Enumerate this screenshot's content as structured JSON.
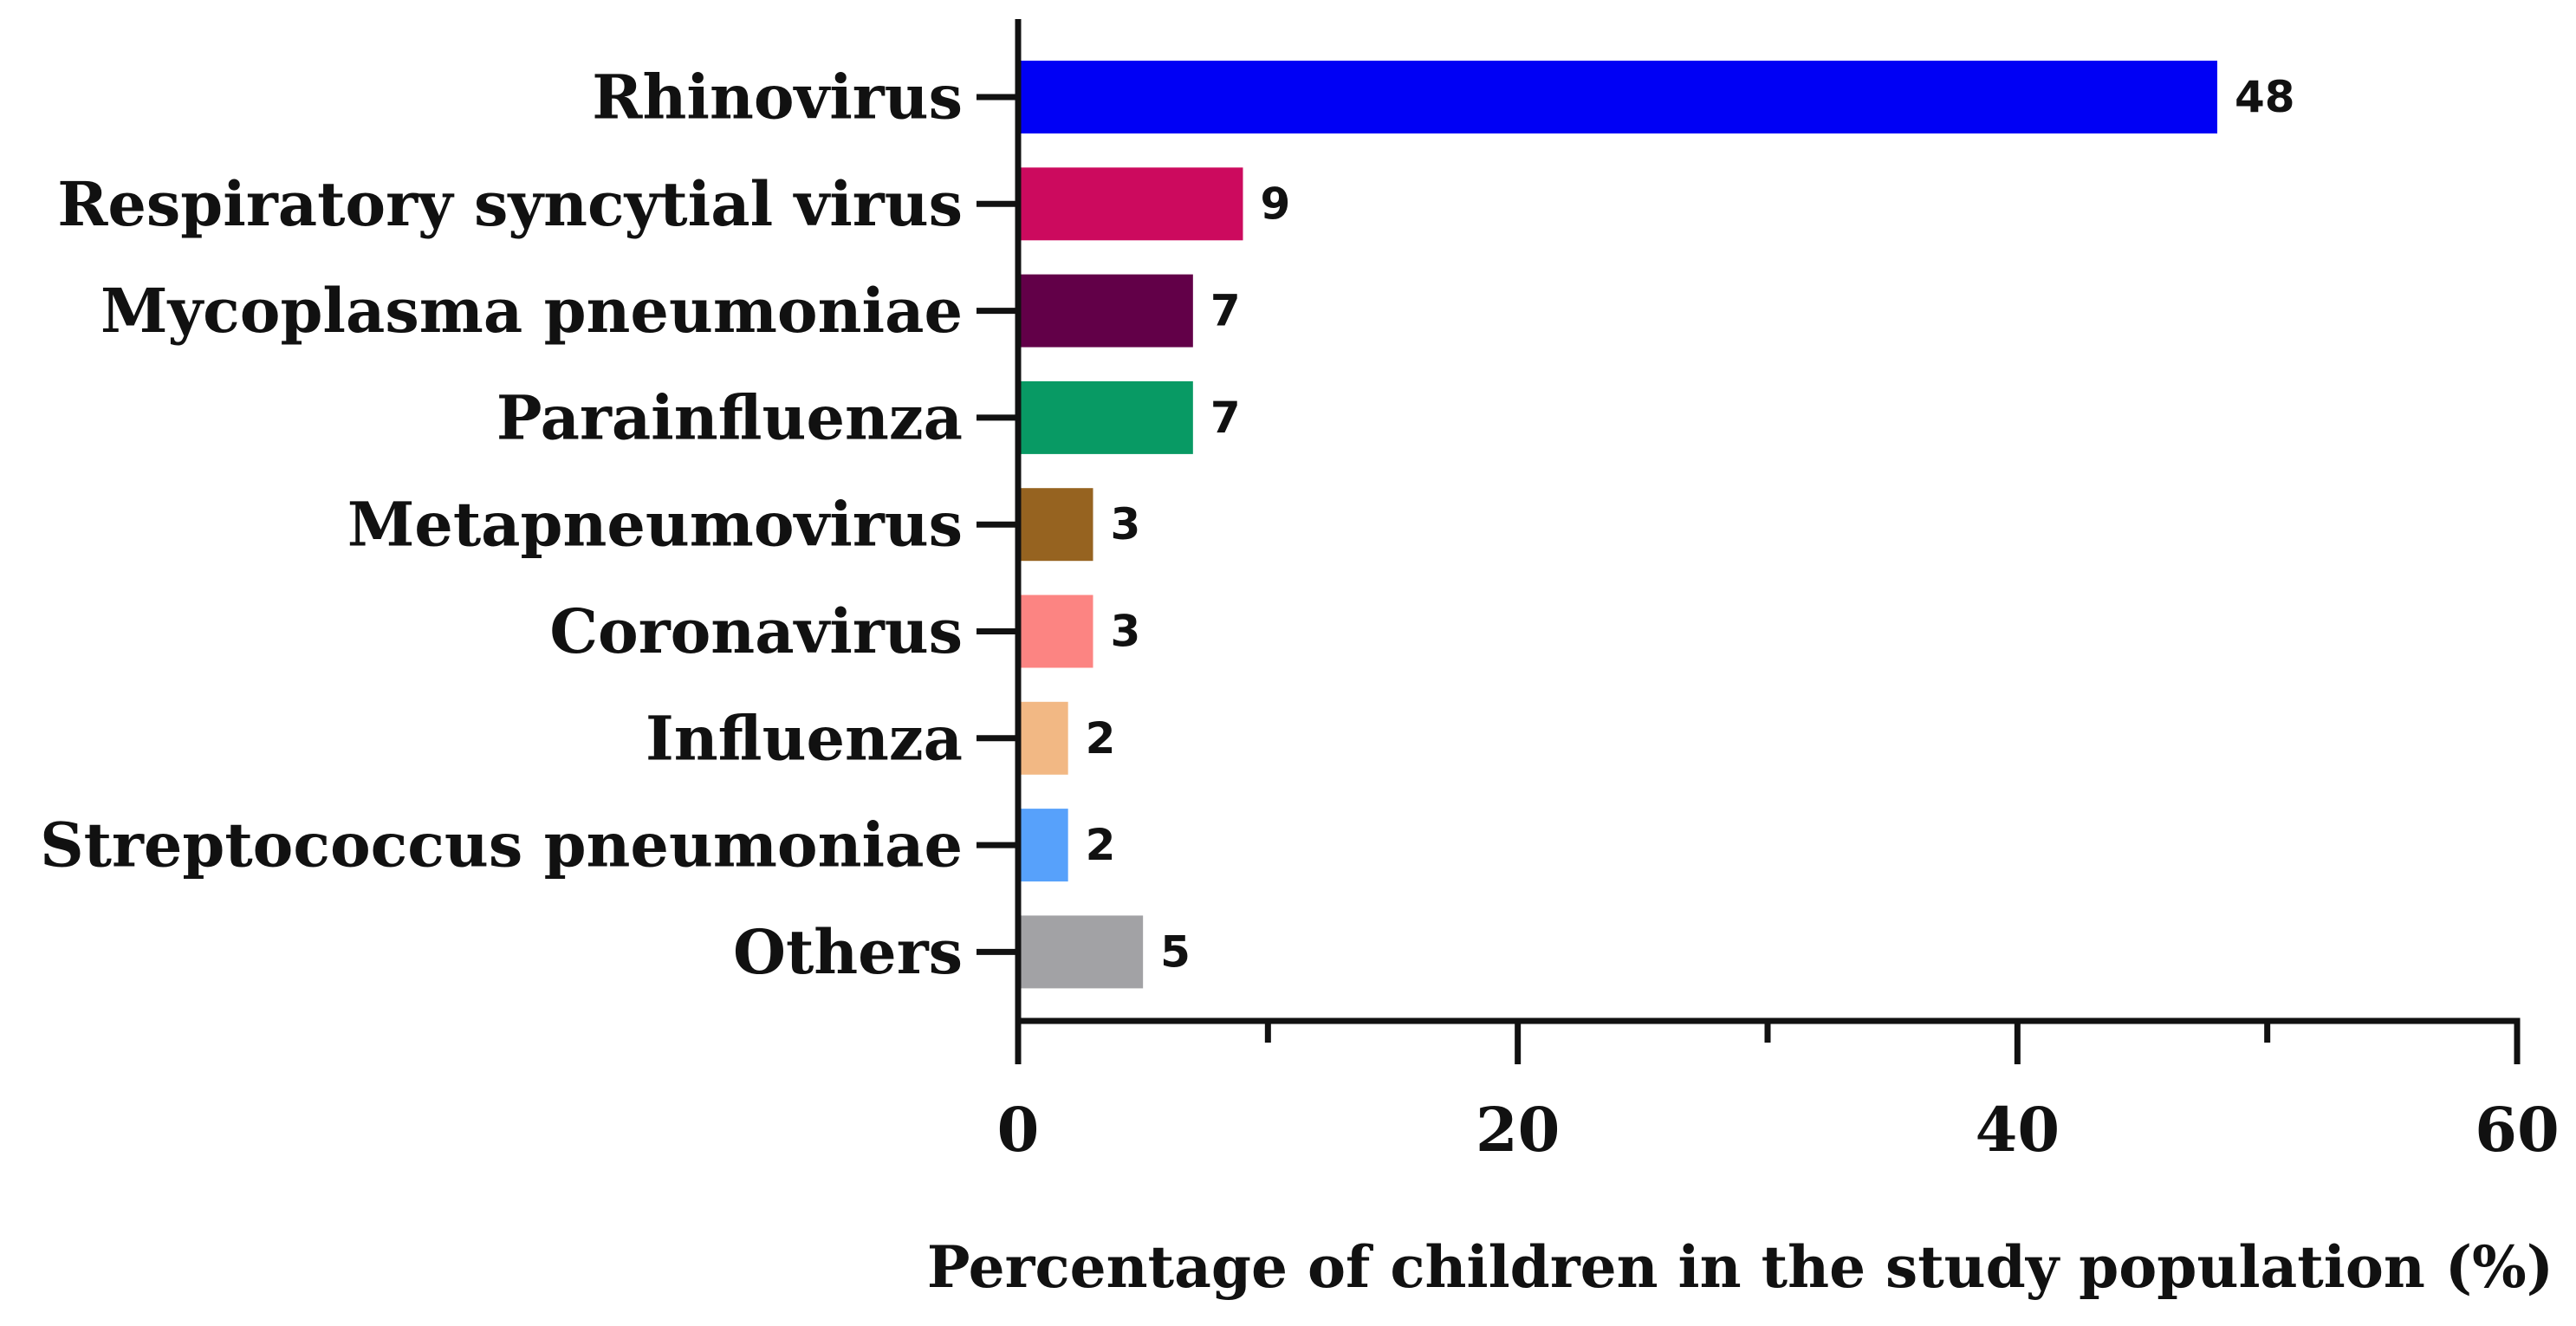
{
  "chart_data": {
    "type": "bar",
    "orientation": "horizontal",
    "categories": [
      "Rhinovirus",
      "Respiratory syncytial virus",
      "Mycoplasma pneumoniae",
      "Parainfluenza",
      "Metapneumovirus",
      "Coronavirus",
      "Influenza",
      "Streptococcus pneumoniae",
      "Others"
    ],
    "values": [
      48,
      9,
      7,
      7,
      3,
      3,
      2,
      2,
      5
    ],
    "value_labels": [
      "48",
      "9",
      "7",
      "7",
      "3",
      "3",
      "2",
      "2",
      "5"
    ],
    "colors": [
      "#0000f5",
      "#cc0a5e",
      "#620048",
      "#089a64",
      "#966320",
      "#fc8482",
      "#f2b884",
      "#57a1fb",
      "#a2a2a5"
    ],
    "xlabel": "Percentage of children in the study population (%)",
    "ylabel": "",
    "title": "",
    "xlim": [
      0,
      60
    ],
    "x_major_ticks": [
      0,
      20,
      40,
      60
    ],
    "x_minor_ticks": [
      10,
      30,
      50
    ],
    "x_tick_labels": [
      "0",
      "20",
      "40",
      "60"
    ],
    "grid": false,
    "legend": "none"
  }
}
